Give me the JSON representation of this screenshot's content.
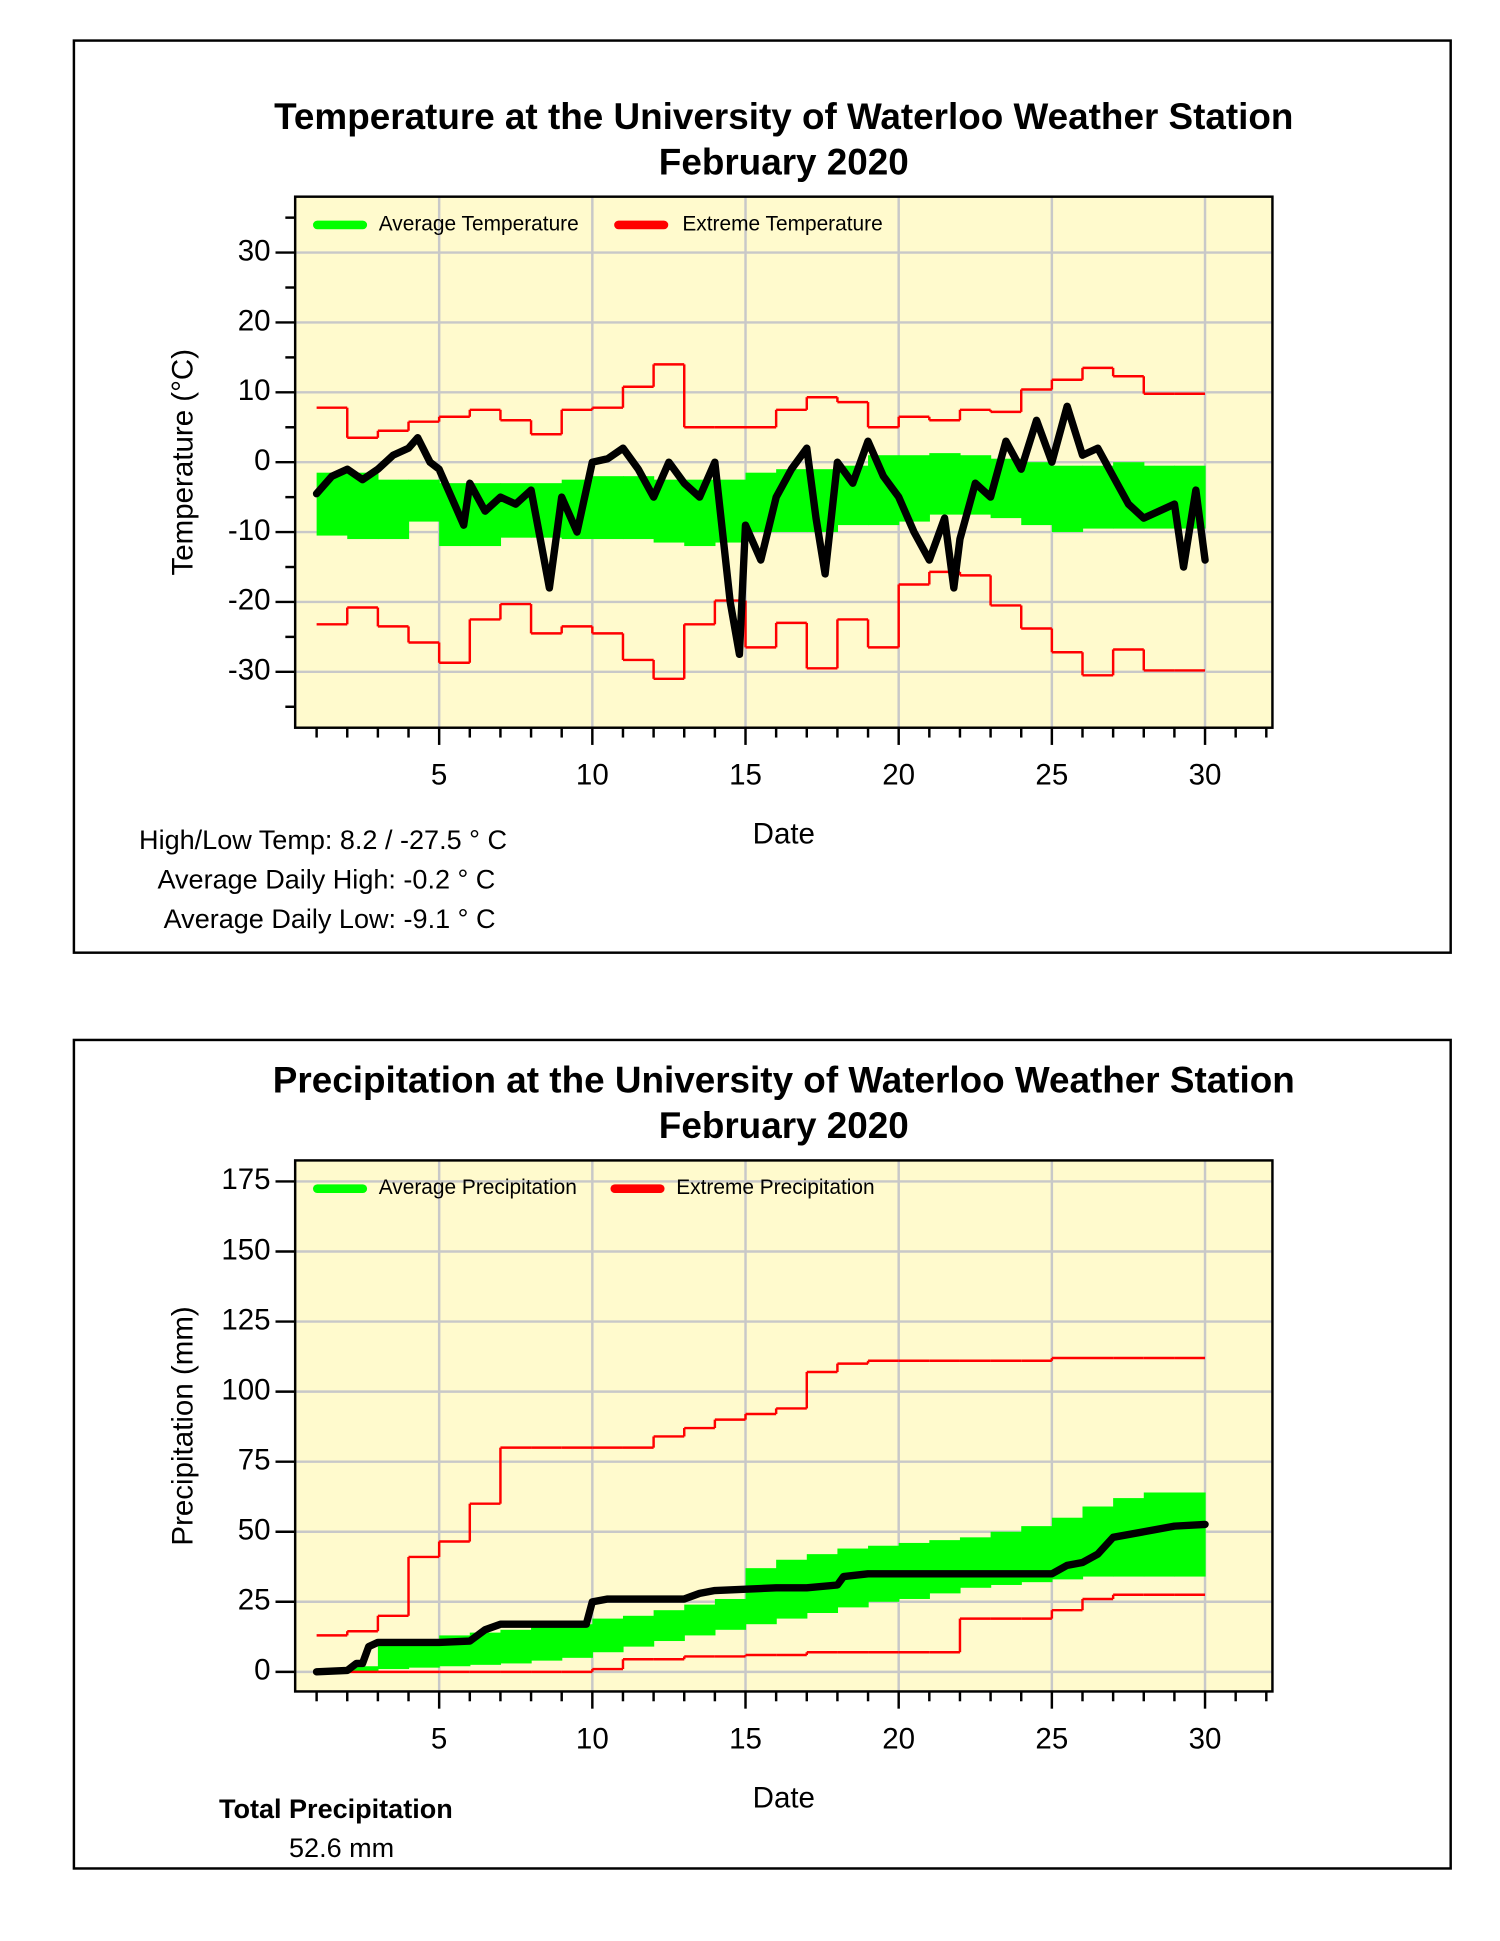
{
  "chart_data": [
    {
      "type": "line",
      "title": "Temperature at the University of Waterloo Weather Station",
      "subtitle": "February 2020",
      "x_label": "Date",
      "y_label": "Temperature (°C)",
      "xlim": [
        0.3,
        32.2
      ],
      "xticks": [
        5,
        10,
        15,
        20,
        25,
        30
      ],
      "xminorticks": [
        1,
        2,
        3,
        4,
        6,
        7,
        8,
        9,
        11,
        12,
        13,
        14,
        16,
        17,
        18,
        19,
        21,
        22,
        23,
        24,
        26,
        27,
        28,
        29,
        31,
        32
      ],
      "ylim": [
        -38,
        38
      ],
      "yticks": [
        -30,
        -20,
        -10,
        0,
        10,
        20,
        30
      ],
      "yminorticks": [
        -35,
        -25,
        -15,
        -5,
        5,
        15,
        25,
        35
      ],
      "grid": true,
      "x_edges": [
        1,
        2,
        3,
        4,
        5,
        6,
        7,
        8,
        9,
        10,
        11,
        12,
        13,
        14,
        15,
        16,
        17,
        18,
        19,
        20,
        21,
        22,
        23,
        24,
        25,
        26,
        27,
        28,
        29,
        30
      ],
      "series": [
        {
          "name": "Average Temperature",
          "kind": "band",
          "color": "#00ff00",
          "upper": [
            -1.5,
            -1.5,
            -2.5,
            -2.5,
            -3,
            -3,
            -3,
            -3,
            -2.5,
            -2,
            -2,
            -2.5,
            -2.5,
            -2.5,
            -1.5,
            -1,
            -1,
            -0.5,
            1,
            1,
            1.3,
            1,
            0.5,
            0,
            -0.5,
            -0.5,
            0,
            -0.5,
            -0.5
          ],
          "lower": [
            -10.5,
            -11,
            -11,
            -8.5,
            -12,
            -12,
            -10.8,
            -10.8,
            -11,
            -11,
            -11,
            -11.5,
            -12,
            -11.5,
            -10,
            -10,
            -10,
            -9,
            -9,
            -8.5,
            -7.5,
            -7.5,
            -8,
            -9,
            -10,
            -9.5,
            -9.5,
            -9.5,
            -9.5
          ]
        },
        {
          "name": "Extreme Temperature",
          "kind": "steps",
          "color": "#ff0000",
          "upper": [
            7.8,
            3.5,
            4.5,
            5.8,
            6.5,
            7.5,
            6,
            4,
            7.5,
            7.8,
            10.8,
            14,
            5,
            5,
            5,
            7.5,
            9.3,
            8.6,
            5,
            6.5,
            6,
            7.5,
            7.2,
            10.4,
            11.8,
            13.5,
            12.3,
            9.8,
            9.8
          ],
          "lower": [
            -23.2,
            -20.8,
            -23.5,
            -25.8,
            -28.7,
            -22.5,
            -20.3,
            -24.5,
            -23.5,
            -24.5,
            -28.3,
            -31,
            -23.2,
            -19.8,
            -26.5,
            -23,
            -29.5,
            -22.5,
            -26.5,
            -17.5,
            -15.7,
            -16.2,
            -20.5,
            -23.8,
            -27.2,
            -30.5,
            -26.8,
            -29.8,
            -29.8
          ]
        },
        {
          "kind": "line",
          "color": "#000000",
          "x": [
            1,
            1.5,
            2,
            2.5,
            3,
            3.5,
            4,
            4.3,
            4.7,
            5,
            5.5,
            5.8,
            6,
            6.5,
            7,
            7.5,
            8,
            8.3,
            8.6,
            9,
            9.5,
            10,
            10.5,
            11,
            11.5,
            12,
            12.5,
            13,
            13.5,
            14,
            14.5,
            14.8,
            15,
            15.5,
            16,
            16.5,
            17,
            17.3,
            17.6,
            18,
            18.5,
            19,
            19.5,
            20,
            20.5,
            21,
            21.5,
            21.8,
            22,
            22.5,
            23,
            23.5,
            24,
            24.5,
            25,
            25.5,
            26,
            26.5,
            27,
            27.5,
            28,
            28.5,
            29,
            29.3,
            29.7,
            30
          ],
          "values": [
            -4.5,
            -2,
            -1,
            -2.5,
            -1,
            1,
            2,
            3.5,
            0,
            -1,
            -6,
            -9,
            -3,
            -7,
            -5,
            -6,
            -4,
            -11,
            -18,
            -5,
            -10,
            0,
            0.5,
            2,
            -1,
            -5,
            0,
            -3,
            -5,
            0,
            -20,
            -27.5,
            -9,
            -14,
            -5,
            -1,
            2,
            -8,
            -16,
            0,
            -3,
            3,
            -2,
            -5,
            -10,
            -14,
            -8,
            -18,
            -11,
            -3,
            -5,
            3,
            -1,
            6,
            0,
            8,
            1,
            2,
            -2,
            -6,
            -8,
            -7,
            -6,
            -15,
            -4,
            -14
          ]
        }
      ],
      "notes": [
        "High/Low Temp:  8.2 / -27.5 ° C",
        "Average Daily High:  -0.2 ° C",
        "Average Daily Low:  -9.1 ° C"
      ]
    },
    {
      "type": "line",
      "title": "Precipitation at the University of Waterloo Weather Station",
      "subtitle": "February 2020",
      "x_label": "Date",
      "y_label": "Precipitation (mm)",
      "xlim": [
        0.3,
        32.2
      ],
      "xticks": [
        5,
        10,
        15,
        20,
        25,
        30
      ],
      "xminorticks": [
        1,
        2,
        3,
        4,
        6,
        7,
        8,
        9,
        11,
        12,
        13,
        14,
        16,
        17,
        18,
        19,
        21,
        22,
        23,
        24,
        26,
        27,
        28,
        29,
        31,
        32
      ],
      "ylim": [
        -7,
        182.5
      ],
      "yticks": [
        0,
        25,
        50,
        75,
        100,
        125,
        150,
        175
      ],
      "grid": true,
      "x_edges": [
        1,
        2,
        3,
        4,
        5,
        6,
        7,
        8,
        9,
        10,
        11,
        12,
        13,
        14,
        15,
        16,
        17,
        18,
        19,
        20,
        21,
        22,
        23,
        24,
        25,
        26,
        27,
        28,
        29,
        30
      ],
      "series": [
        {
          "name": "Average Precipitation",
          "kind": "band",
          "color": "#00ff00",
          "upper": [
            0,
            2,
            10,
            11,
            13,
            14,
            15,
            16,
            17,
            19,
            20,
            22,
            24,
            26,
            37,
            40,
            42,
            44,
            45,
            46,
            47,
            48,
            50,
            52,
            55,
            59,
            62,
            64,
            64
          ],
          "lower": [
            0,
            0,
            1,
            1.5,
            2,
            2.5,
            3,
            4,
            5,
            7,
            9,
            11,
            13,
            15,
            17,
            19,
            21,
            23,
            25,
            26,
            28,
            30,
            31,
            32,
            33,
            34,
            34,
            34,
            34
          ]
        },
        {
          "name": "Extreme Precipitation",
          "kind": "steps",
          "color": "#ff0000",
          "upper": [
            13,
            14.5,
            20,
            41,
            46.5,
            60,
            80,
            80,
            80,
            80,
            80,
            84,
            87,
            90,
            92,
            94,
            107,
            110,
            111,
            111,
            111,
            111,
            111,
            111,
            112,
            112,
            112,
            112,
            112
          ],
          "lower": [
            0,
            0,
            0,
            0,
            0,
            0,
            0,
            0,
            0,
            1,
            4.5,
            4.5,
            5.5,
            5.5,
            6,
            6,
            7,
            7,
            7,
            7,
            7,
            19,
            19,
            19,
            22,
            26,
            27.5,
            27.5,
            27.5
          ]
        },
        {
          "kind": "line",
          "color": "#000000",
          "x": [
            1,
            2,
            2.3,
            2.5,
            2.7,
            3,
            5,
            6,
            6.5,
            7,
            8,
            9.8,
            10,
            10.5,
            13,
            13.5,
            14,
            16,
            17,
            18,
            18.2,
            19,
            25,
            25.5,
            26,
            26.5,
            27,
            28,
            29,
            30
          ],
          "values": [
            0,
            0.5,
            3,
            3,
            9,
            10.5,
            10.5,
            11,
            15,
            17,
            17,
            17,
            25,
            26,
            26,
            28,
            29,
            30,
            30,
            31,
            34,
            35,
            35,
            38,
            39,
            42,
            48,
            50,
            52,
            52.6
          ]
        }
      ],
      "notes": [
        "Total Precipitation",
        "52.6 mm"
      ]
    }
  ]
}
